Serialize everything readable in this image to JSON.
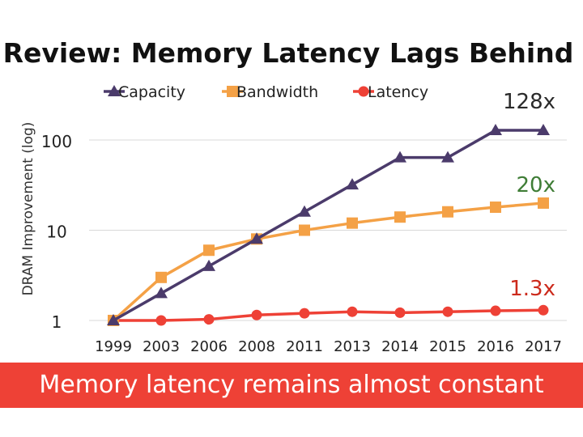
{
  "slide": {
    "title": "Review: Memory Latency Lags Behind",
    "banner": "Memory latency remains almost constant"
  },
  "colors": {
    "capacity": "#4b3b6b",
    "bandwidth": "#f4a146",
    "latency": "#ee4136",
    "label_bandwidth": "#3f7d36",
    "label_latency": "#cc2a1c",
    "label_capacity": "#2b2b2b"
  },
  "chart_data": {
    "type": "line",
    "title": "Review: Memory Latency Lags Behind",
    "xlabel": "",
    "ylabel": "DRAM Improvement (log)",
    "yscale": "log",
    "ylim": [
      1,
      128
    ],
    "yticks": [
      1,
      10,
      100
    ],
    "ytick_labels": [
      "1",
      "10",
      "100"
    ],
    "categories": [
      "1999",
      "2003",
      "2006",
      "2008",
      "2011",
      "2013",
      "2014",
      "2015",
      "2016",
      "2017"
    ],
    "legend_position": "top",
    "series": [
      {
        "name": "Capacity",
        "marker": "triangle",
        "values": [
          1,
          2,
          4,
          8,
          16,
          32,
          64,
          64,
          128,
          128
        ]
      },
      {
        "name": "Bandwidth",
        "marker": "square",
        "values": [
          1,
          3,
          6,
          8,
          10,
          12,
          14,
          16,
          18,
          20
        ]
      },
      {
        "name": "Latency",
        "marker": "circle",
        "values": [
          1,
          1,
          1.03,
          1.15,
          1.2,
          1.25,
          1.22,
          1.25,
          1.28,
          1.3
        ]
      }
    ],
    "annotations": [
      {
        "text": "128x",
        "series": "Capacity"
      },
      {
        "text": "20x",
        "series": "Bandwidth"
      },
      {
        "text": "1.3x",
        "series": "Latency"
      }
    ]
  }
}
